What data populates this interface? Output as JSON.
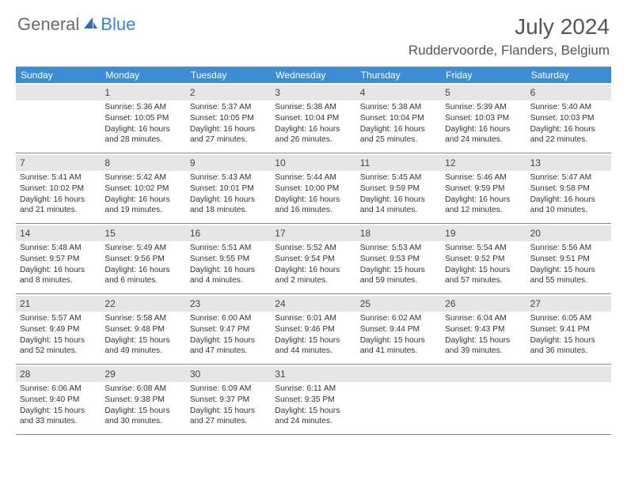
{
  "logo": {
    "textGeneral": "General",
    "textBlue": "Blue"
  },
  "header": {
    "monthTitle": "July 2024",
    "location": "Ruddervoorde, Flanders, Belgium"
  },
  "colors": {
    "headerBg": "#3b8ed6",
    "headerText": "#ffffff",
    "dayBarBg": "#e6e6e6",
    "textDark": "#333333",
    "titleGray": "#555555",
    "logoGray": "#6b6b6b",
    "logoBlue": "#3b82d4",
    "borderGray": "#888888"
  },
  "weekdays": [
    "Sunday",
    "Monday",
    "Tuesday",
    "Wednesday",
    "Thursday",
    "Friday",
    "Saturday"
  ],
  "weeks": [
    [
      null,
      {
        "n": "1",
        "sunrise": "5:36 AM",
        "sunset": "10:05 PM",
        "daylight": "16 hours and 28 minutes."
      },
      {
        "n": "2",
        "sunrise": "5:37 AM",
        "sunset": "10:05 PM",
        "daylight": "16 hours and 27 minutes."
      },
      {
        "n": "3",
        "sunrise": "5:38 AM",
        "sunset": "10:04 PM",
        "daylight": "16 hours and 26 minutes."
      },
      {
        "n": "4",
        "sunrise": "5:38 AM",
        "sunset": "10:04 PM",
        "daylight": "16 hours and 25 minutes."
      },
      {
        "n": "5",
        "sunrise": "5:39 AM",
        "sunset": "10:03 PM",
        "daylight": "16 hours and 24 minutes."
      },
      {
        "n": "6",
        "sunrise": "5:40 AM",
        "sunset": "10:03 PM",
        "daylight": "16 hours and 22 minutes."
      }
    ],
    [
      {
        "n": "7",
        "sunrise": "5:41 AM",
        "sunset": "10:02 PM",
        "daylight": "16 hours and 21 minutes."
      },
      {
        "n": "8",
        "sunrise": "5:42 AM",
        "sunset": "10:02 PM",
        "daylight": "16 hours and 19 minutes."
      },
      {
        "n": "9",
        "sunrise": "5:43 AM",
        "sunset": "10:01 PM",
        "daylight": "16 hours and 18 minutes."
      },
      {
        "n": "10",
        "sunrise": "5:44 AM",
        "sunset": "10:00 PM",
        "daylight": "16 hours and 16 minutes."
      },
      {
        "n": "11",
        "sunrise": "5:45 AM",
        "sunset": "9:59 PM",
        "daylight": "16 hours and 14 minutes."
      },
      {
        "n": "12",
        "sunrise": "5:46 AM",
        "sunset": "9:59 PM",
        "daylight": "16 hours and 12 minutes."
      },
      {
        "n": "13",
        "sunrise": "5:47 AM",
        "sunset": "9:58 PM",
        "daylight": "16 hours and 10 minutes."
      }
    ],
    [
      {
        "n": "14",
        "sunrise": "5:48 AM",
        "sunset": "9:57 PM",
        "daylight": "16 hours and 8 minutes."
      },
      {
        "n": "15",
        "sunrise": "5:49 AM",
        "sunset": "9:56 PM",
        "daylight": "16 hours and 6 minutes."
      },
      {
        "n": "16",
        "sunrise": "5:51 AM",
        "sunset": "9:55 PM",
        "daylight": "16 hours and 4 minutes."
      },
      {
        "n": "17",
        "sunrise": "5:52 AM",
        "sunset": "9:54 PM",
        "daylight": "16 hours and 2 minutes."
      },
      {
        "n": "18",
        "sunrise": "5:53 AM",
        "sunset": "9:53 PM",
        "daylight": "15 hours and 59 minutes."
      },
      {
        "n": "19",
        "sunrise": "5:54 AM",
        "sunset": "9:52 PM",
        "daylight": "15 hours and 57 minutes."
      },
      {
        "n": "20",
        "sunrise": "5:56 AM",
        "sunset": "9:51 PM",
        "daylight": "15 hours and 55 minutes."
      }
    ],
    [
      {
        "n": "21",
        "sunrise": "5:57 AM",
        "sunset": "9:49 PM",
        "daylight": "15 hours and 52 minutes."
      },
      {
        "n": "22",
        "sunrise": "5:58 AM",
        "sunset": "9:48 PM",
        "daylight": "15 hours and 49 minutes."
      },
      {
        "n": "23",
        "sunrise": "6:00 AM",
        "sunset": "9:47 PM",
        "daylight": "15 hours and 47 minutes."
      },
      {
        "n": "24",
        "sunrise": "6:01 AM",
        "sunset": "9:46 PM",
        "daylight": "15 hours and 44 minutes."
      },
      {
        "n": "25",
        "sunrise": "6:02 AM",
        "sunset": "9:44 PM",
        "daylight": "15 hours and 41 minutes."
      },
      {
        "n": "26",
        "sunrise": "6:04 AM",
        "sunset": "9:43 PM",
        "daylight": "15 hours and 39 minutes."
      },
      {
        "n": "27",
        "sunrise": "6:05 AM",
        "sunset": "9:41 PM",
        "daylight": "15 hours and 36 minutes."
      }
    ],
    [
      {
        "n": "28",
        "sunrise": "6:06 AM",
        "sunset": "9:40 PM",
        "daylight": "15 hours and 33 minutes."
      },
      {
        "n": "29",
        "sunrise": "6:08 AM",
        "sunset": "9:38 PM",
        "daylight": "15 hours and 30 minutes."
      },
      {
        "n": "30",
        "sunrise": "6:09 AM",
        "sunset": "9:37 PM",
        "daylight": "15 hours and 27 minutes."
      },
      {
        "n": "31",
        "sunrise": "6:11 AM",
        "sunset": "9:35 PM",
        "daylight": "15 hours and 24 minutes."
      },
      null,
      null,
      null
    ]
  ],
  "labels": {
    "sunrise": "Sunrise: ",
    "sunset": "Sunset: ",
    "daylight": "Daylight: "
  }
}
